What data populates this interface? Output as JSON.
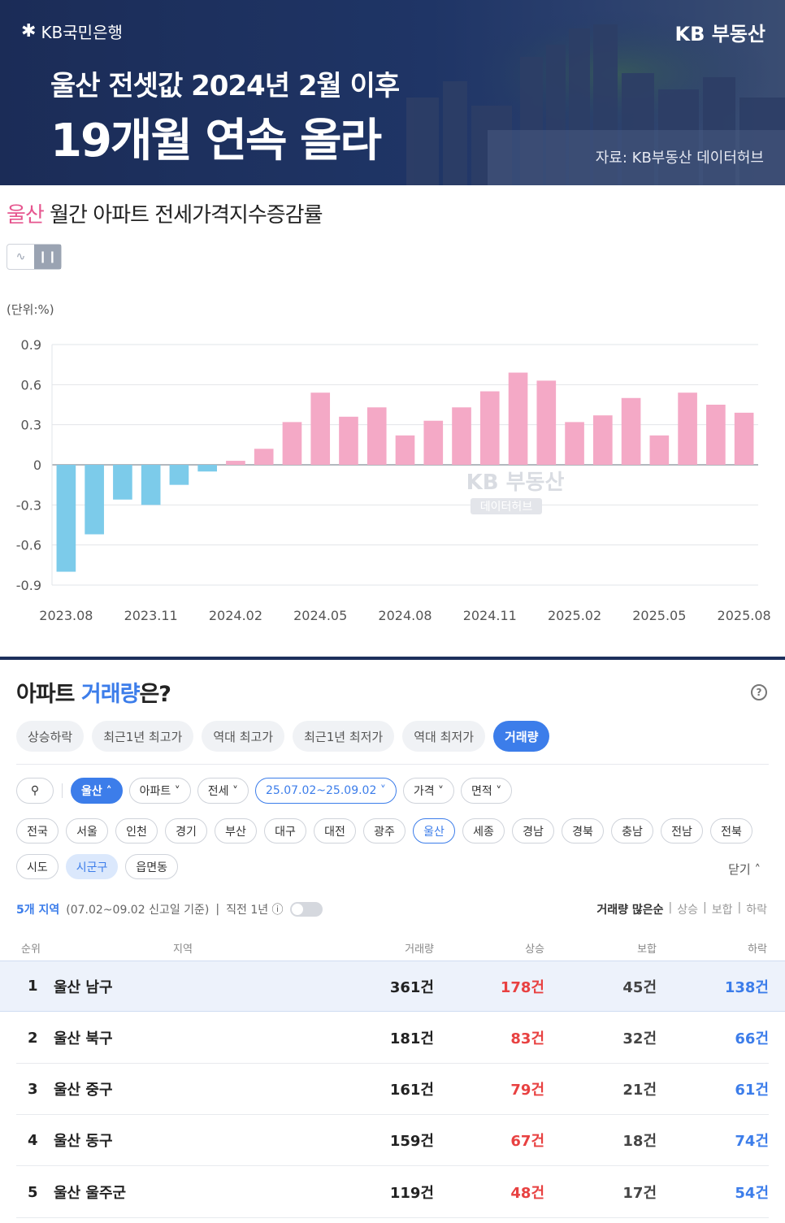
{
  "banner": {
    "logo_mark": "✱",
    "logo_text": "KB국민은행",
    "brand": "KB 부동산",
    "headline_1": "울산 전셋값 2024년 2월 이후",
    "headline_2": "19개월 연속 올라",
    "source": "자료: KB부동산 데이터허브"
  },
  "chart_section": {
    "title_region": "울산",
    "title_rest": " 월간 아파트 전세가격지수증감률",
    "toggle_line_icon": "∿",
    "toggle_bar_icon": "❙❙",
    "unit": "(단위:%)"
  },
  "chart_data": {
    "type": "bar",
    "categories": [
      "2023.08",
      "2023.09",
      "2023.10",
      "2023.11",
      "2023.12",
      "2024.01",
      "2024.02",
      "2024.03",
      "2024.04",
      "2024.05",
      "2024.06",
      "2024.07",
      "2024.08",
      "2024.09",
      "2024.10",
      "2024.11",
      "2024.12",
      "2025.01",
      "2025.02",
      "2025.03",
      "2025.04",
      "2025.05",
      "2025.06",
      "2025.07",
      "2025.08"
    ],
    "values": [
      -0.8,
      -0.52,
      -0.26,
      -0.3,
      -0.15,
      -0.05,
      0.03,
      0.12,
      0.32,
      0.54,
      0.36,
      0.43,
      0.22,
      0.33,
      0.43,
      0.55,
      0.69,
      0.63,
      0.32,
      0.37,
      0.5,
      0.22,
      0.54,
      0.45,
      0.39
    ],
    "x_tick_labels": [
      "2023.08",
      "2023.11",
      "2024.02",
      "2024.05",
      "2024.08",
      "2024.11",
      "2025.02",
      "2025.05",
      "2025.08"
    ],
    "y_ticks": [
      0.9,
      0.6,
      0.3,
      0,
      -0.3,
      -0.6,
      -0.9
    ],
    "ylim": [
      -0.9,
      0.9
    ],
    "grid": true,
    "watermark_1": "KB 부동산",
    "watermark_2": "데이터허브",
    "colors": {
      "positive": "#f4a9c6",
      "negative": "#7ccbea",
      "grid": "#e2e4e8",
      "zero_line": "#9aa0a8"
    }
  },
  "volume_section": {
    "title_prefix": "아파트 ",
    "title_accent": "거래량",
    "title_suffix": "은?",
    "help_icon": "?",
    "tabs": [
      "상승하락",
      "최근1년 최고가",
      "역대 최고가",
      "최근1년 최저가",
      "역대 최저가",
      "거래량"
    ],
    "active_tab": 5,
    "filters": {
      "search_icon": "⚲",
      "region": "울산 ˄",
      "type": "아파트 ˅",
      "deal": "전세 ˅",
      "period": "25.07.02~25.09.02 ˅",
      "price": "가격 ˅",
      "area": "면적 ˅"
    },
    "regions": [
      "전국",
      "서울",
      "인천",
      "경기",
      "부산",
      "대구",
      "대전",
      "광주",
      "울산",
      "세종",
      "경남",
      "경북",
      "충남",
      "전남",
      "전북"
    ],
    "selected_region": 8,
    "levels": [
      "시도",
      "시군구",
      "읍면동"
    ],
    "selected_level": 1,
    "close_label": "닫기 ˄",
    "meta_count": "5개 지역",
    "meta_basis": "(07.02~09.02 신고일 기준)",
    "meta_toggle": "직전 1년 ⓘ",
    "sort": [
      "거래량 많은순",
      "|",
      "상승",
      "|",
      "보합",
      "|",
      "하락"
    ],
    "columns": {
      "rank": "순위",
      "region": "지역",
      "volume": "거래량",
      "up": "상승",
      "flat": "보합",
      "down": "하락"
    },
    "rows": [
      {
        "rank": "1",
        "name": "울산 남구",
        "volume": "361건",
        "up": "178건",
        "flat": "45건",
        "down": "138건"
      },
      {
        "rank": "2",
        "name": "울산 북구",
        "volume": "181건",
        "up": "83건",
        "flat": "32건",
        "down": "66건"
      },
      {
        "rank": "3",
        "name": "울산 중구",
        "volume": "161건",
        "up": "79건",
        "flat": "21건",
        "down": "61건"
      },
      {
        "rank": "4",
        "name": "울산 동구",
        "volume": "159건",
        "up": "67건",
        "flat": "18건",
        "down": "74건"
      },
      {
        "rank": "5",
        "name": "울산 울주군",
        "volume": "119건",
        "up": "48건",
        "flat": "17건",
        "down": "54건"
      }
    ]
  }
}
